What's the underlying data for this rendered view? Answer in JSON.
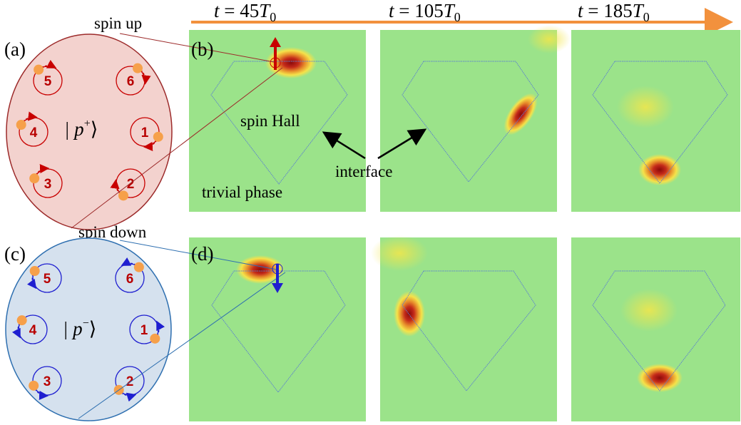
{
  "time_axis": {
    "t1": "45",
    "t2": "105",
    "t3": "185",
    "t_symbol": "t",
    "eq": " = ",
    "T_symbol": "T",
    "T_sub": "0",
    "arrow_color": "#f2913d"
  },
  "panel_labels": {
    "a": "(a)",
    "b": "(b)",
    "c": "(c)",
    "d": "(d)"
  },
  "spin_up": {
    "title": "spin up",
    "state_pre": "| p",
    "state_sup": "+",
    "state_post": "⟩",
    "fill_color": "#f3d2ce",
    "edge_color": "#9c2a2a",
    "arrow_color": "#c80000",
    "atoms": [
      "5",
      "6",
      "1",
      "2",
      "3",
      "4"
    ]
  },
  "spin_down": {
    "title": "spin down",
    "state_pre": "| p",
    "state_sup": "−",
    "state_post": "⟩",
    "fill_color": "#d5e1ee",
    "edge_color": "#2e6fb0",
    "arrow_color": "#1f1fd0",
    "atoms": [
      "5",
      "6",
      "1",
      "2",
      "3",
      "4"
    ]
  },
  "annotations": {
    "spin_hall": "spin Hall",
    "interface": "interface",
    "trivial": "trivial phase"
  },
  "colors": {
    "background_field": "#9be38a",
    "hot": "#b01010",
    "warm": "#f3e64a",
    "atom": "#f6a04a"
  }
}
